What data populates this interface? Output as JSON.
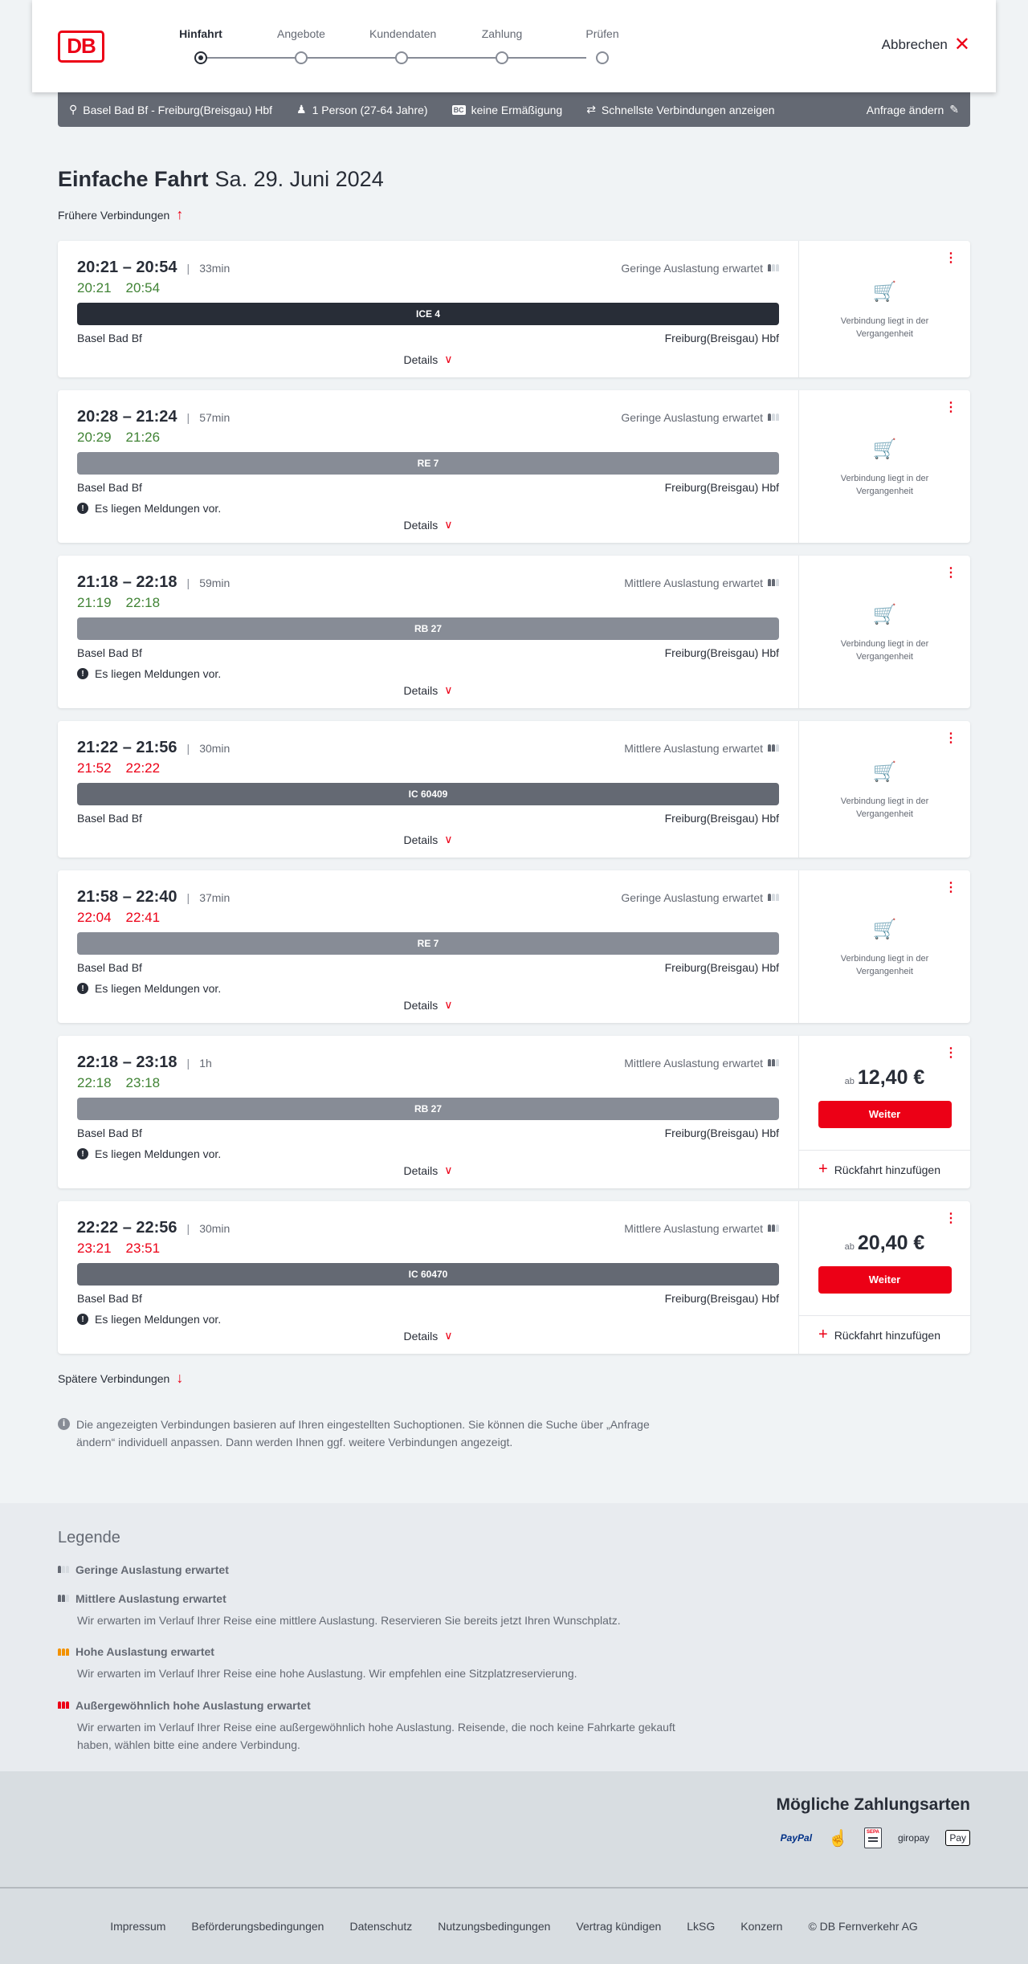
{
  "header": {
    "logo": "DB",
    "steps": [
      "Hinfahrt",
      "Angebote",
      "Kundendaten",
      "Zahlung",
      "Prüfen"
    ],
    "active_step": 0,
    "cancel": "Abbrechen"
  },
  "search": {
    "route": "Basel Bad Bf - Freiburg(Breisgau) Hbf",
    "passengers": "1 Person (27-64 Jahre)",
    "bc": "BC",
    "discount": "keine Ermäßigung",
    "option": "Schnellste Verbindungen anzeigen",
    "edit": "Anfrage ändern"
  },
  "page": {
    "title": "Einfache Fahrt",
    "date": "Sa. 29. Juni 2024",
    "earlier": "Frühere Verbindungen",
    "later": "Spätere Verbindungen",
    "info": "Die angezeigten Verbindungen basieren auf Ihren eingestellten Suchoptionen. Sie können die Suche über „Anfrage ändern“ individuell anpassen. Dann werden Ihnen ggf. weitere Verbindungen angezeigt."
  },
  "labels": {
    "details": "Details",
    "past": "Verbindung liegt in der Vergangenheit",
    "ab": "ab",
    "weiter": "Weiter",
    "return": "Rückfahrt hinzufügen",
    "message": "Es liegen Meldungen vor."
  },
  "colors": {
    "accent": "#ec0016",
    "on_time": "#408335",
    "delayed": "#ec0016",
    "ice": "#282d37",
    "regional": "#878c96",
    "ic": "#646973"
  },
  "connections": [
    {
      "times": "20:21 – 20:54",
      "duration": "33min",
      "occupancy": "Geringe Auslastung erwartet",
      "level": 1,
      "rt_dep": "20:21",
      "rt_arr": "20:54",
      "rt_status": "green",
      "train": "ICE 4",
      "train_color": "#282d37",
      "from": "Basel Bad Bf",
      "to": "Freiburg(Breisgau) Hbf",
      "message": false,
      "price": null
    },
    {
      "times": "20:28 – 21:24",
      "duration": "57min",
      "occupancy": "Geringe Auslastung erwartet",
      "level": 1,
      "rt_dep": "20:29",
      "rt_arr": "21:26",
      "rt_status": "green",
      "train": "RE 7",
      "train_color": "#878c96",
      "from": "Basel Bad Bf",
      "to": "Freiburg(Breisgau) Hbf",
      "message": true,
      "price": null
    },
    {
      "times": "21:18 – 22:18",
      "duration": "59min",
      "occupancy": "Mittlere Auslastung erwartet",
      "level": 2,
      "rt_dep": "21:19",
      "rt_arr": "22:18",
      "rt_status": "green",
      "train": "RB 27",
      "train_color": "#878c96",
      "from": "Basel Bad Bf",
      "to": "Freiburg(Breisgau) Hbf",
      "message": true,
      "price": null
    },
    {
      "times": "21:22 – 21:56",
      "duration": "30min",
      "occupancy": "Mittlere Auslastung erwartet",
      "level": 2,
      "rt_dep": "21:52",
      "rt_arr": "22:22",
      "rt_status": "red",
      "train": "IC 60409",
      "train_color": "#646973",
      "from": "Basel Bad Bf",
      "to": "Freiburg(Breisgau) Hbf",
      "message": false,
      "price": null
    },
    {
      "times": "21:58 – 22:40",
      "duration": "37min",
      "occupancy": "Geringe Auslastung erwartet",
      "level": 1,
      "rt_dep": "22:04",
      "rt_arr": "22:41",
      "rt_status": "red",
      "train": "RE 7",
      "train_color": "#878c96",
      "from": "Basel Bad Bf",
      "to": "Freiburg(Breisgau) Hbf",
      "message": true,
      "price": null
    },
    {
      "times": "22:18 – 23:18",
      "duration": "1h",
      "occupancy": "Mittlere Auslastung erwartet",
      "level": 2,
      "rt_dep": "22:18",
      "rt_arr": "23:18",
      "rt_status": "green",
      "train": "RB 27",
      "train_color": "#878c96",
      "from": "Basel Bad Bf",
      "to": "Freiburg(Breisgau) Hbf",
      "message": true,
      "price": "12,40 €"
    },
    {
      "times": "22:22 – 22:56",
      "duration": "30min",
      "occupancy": "Mittlere Auslastung erwartet",
      "level": 2,
      "rt_dep": "23:21",
      "rt_arr": "23:51",
      "rt_status": "red",
      "train": "IC 60470",
      "train_color": "#646973",
      "from": "Basel Bad Bf",
      "to": "Freiburg(Breisgau) Hbf",
      "message": true,
      "price": "20,40 €"
    }
  ],
  "legend": {
    "title": "Legende",
    "items": [
      {
        "title": "Geringe Auslastung erwartet",
        "text": "",
        "level": 1
      },
      {
        "title": "Mittlere Auslastung erwartet",
        "text": "Wir erwarten im Verlauf Ihrer Reise eine mittlere Auslastung. Reservieren Sie bereits jetzt Ihren Wunschplatz.",
        "level": 2
      },
      {
        "title": "Hohe Auslastung erwartet",
        "text": "Wir erwarten im Verlauf Ihrer Reise eine hohe Auslastung. Wir empfehlen eine Sitzplatzreservierung.",
        "level": 3
      },
      {
        "title": "Außergewöhnlich hohe Auslastung erwartet",
        "text": "Wir erwarten im Verlauf Ihrer Reise eine außergewöhnlich hohe Auslastung. Reisende, die noch keine Fahrkarte gekauft haben, wählen bitte eine andere Verbindung.",
        "level": 4
      }
    ]
  },
  "payment": {
    "title": "Mögliche Zahlungsarten",
    "methods": [
      "PayPal",
      "Kreditkarte",
      "SEPA",
      "giropay",
      "Pay"
    ]
  },
  "footer": {
    "links": [
      "Impressum",
      "Beförderungsbedingungen",
      "Datenschutz",
      "Nutzungsbedingungen",
      "Vertrag kündigen",
      "LkSG",
      "Konzern",
      "© DB Fernverkehr AG"
    ]
  }
}
